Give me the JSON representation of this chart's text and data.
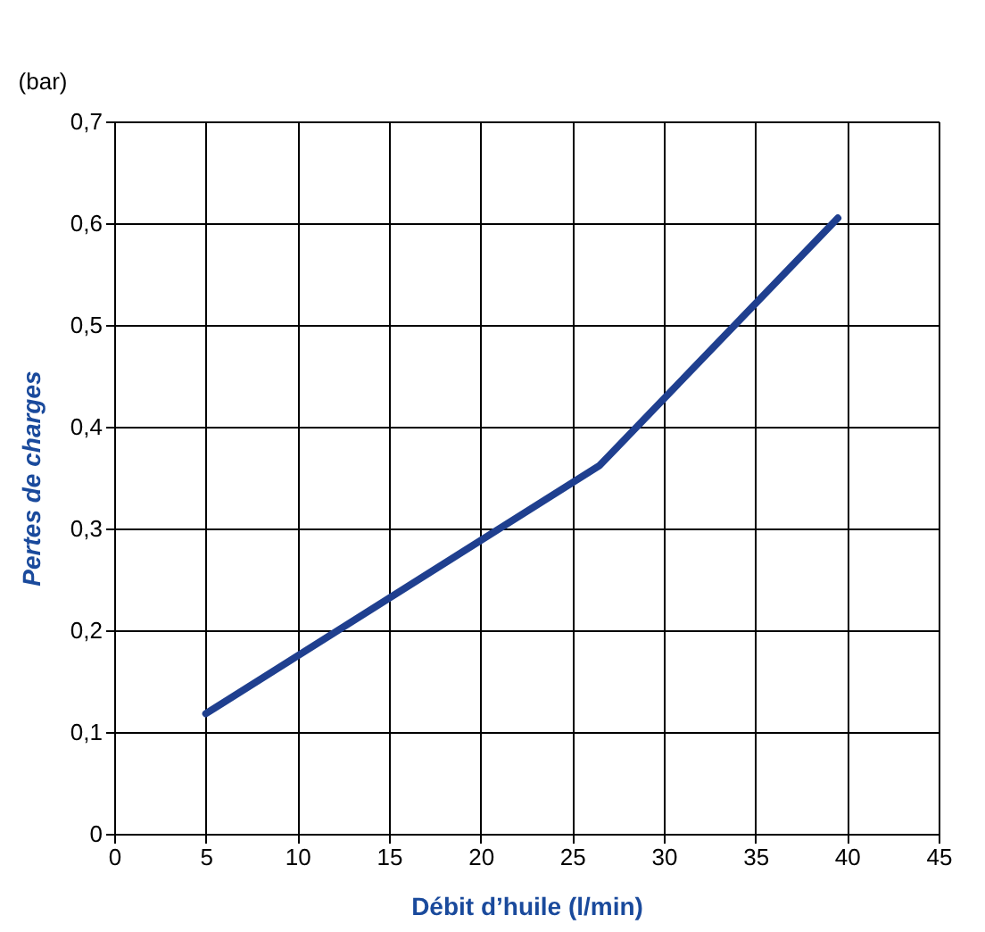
{
  "chart_data": {
    "type": "line",
    "xlabel": "Débit d’huile (l/min)",
    "ylabel": "Pertes de charges",
    "annotations": [
      "(bar)"
    ],
    "x": [
      5,
      26.5,
      39.5
    ],
    "series": [
      {
        "color": "#1f3f8f",
        "values": [
          0.118,
          0.362,
          0.605
        ]
      }
    ],
    "xlim": [
      0,
      45
    ],
    "xticks": [
      0,
      5,
      10,
      15,
      20,
      25,
      30,
      35,
      40,
      45
    ],
    "ylim": [
      0,
      0.7
    ],
    "yticks": [
      {
        "value": 0,
        "label": "0"
      },
      {
        "value": 0.1,
        "label": "0,1"
      },
      {
        "value": 0.2,
        "label": "0,2"
      },
      {
        "value": 0.3,
        "label": "0,3"
      },
      {
        "value": 0.4,
        "label": "0,4"
      },
      {
        "value": 0.5,
        "label": "0,5"
      },
      {
        "value": 0.6,
        "label": "0,6"
      },
      {
        "value": 0.7,
        "label": "0,7"
      }
    ],
    "grid": true,
    "marker": "none",
    "line_style": "solid"
  }
}
